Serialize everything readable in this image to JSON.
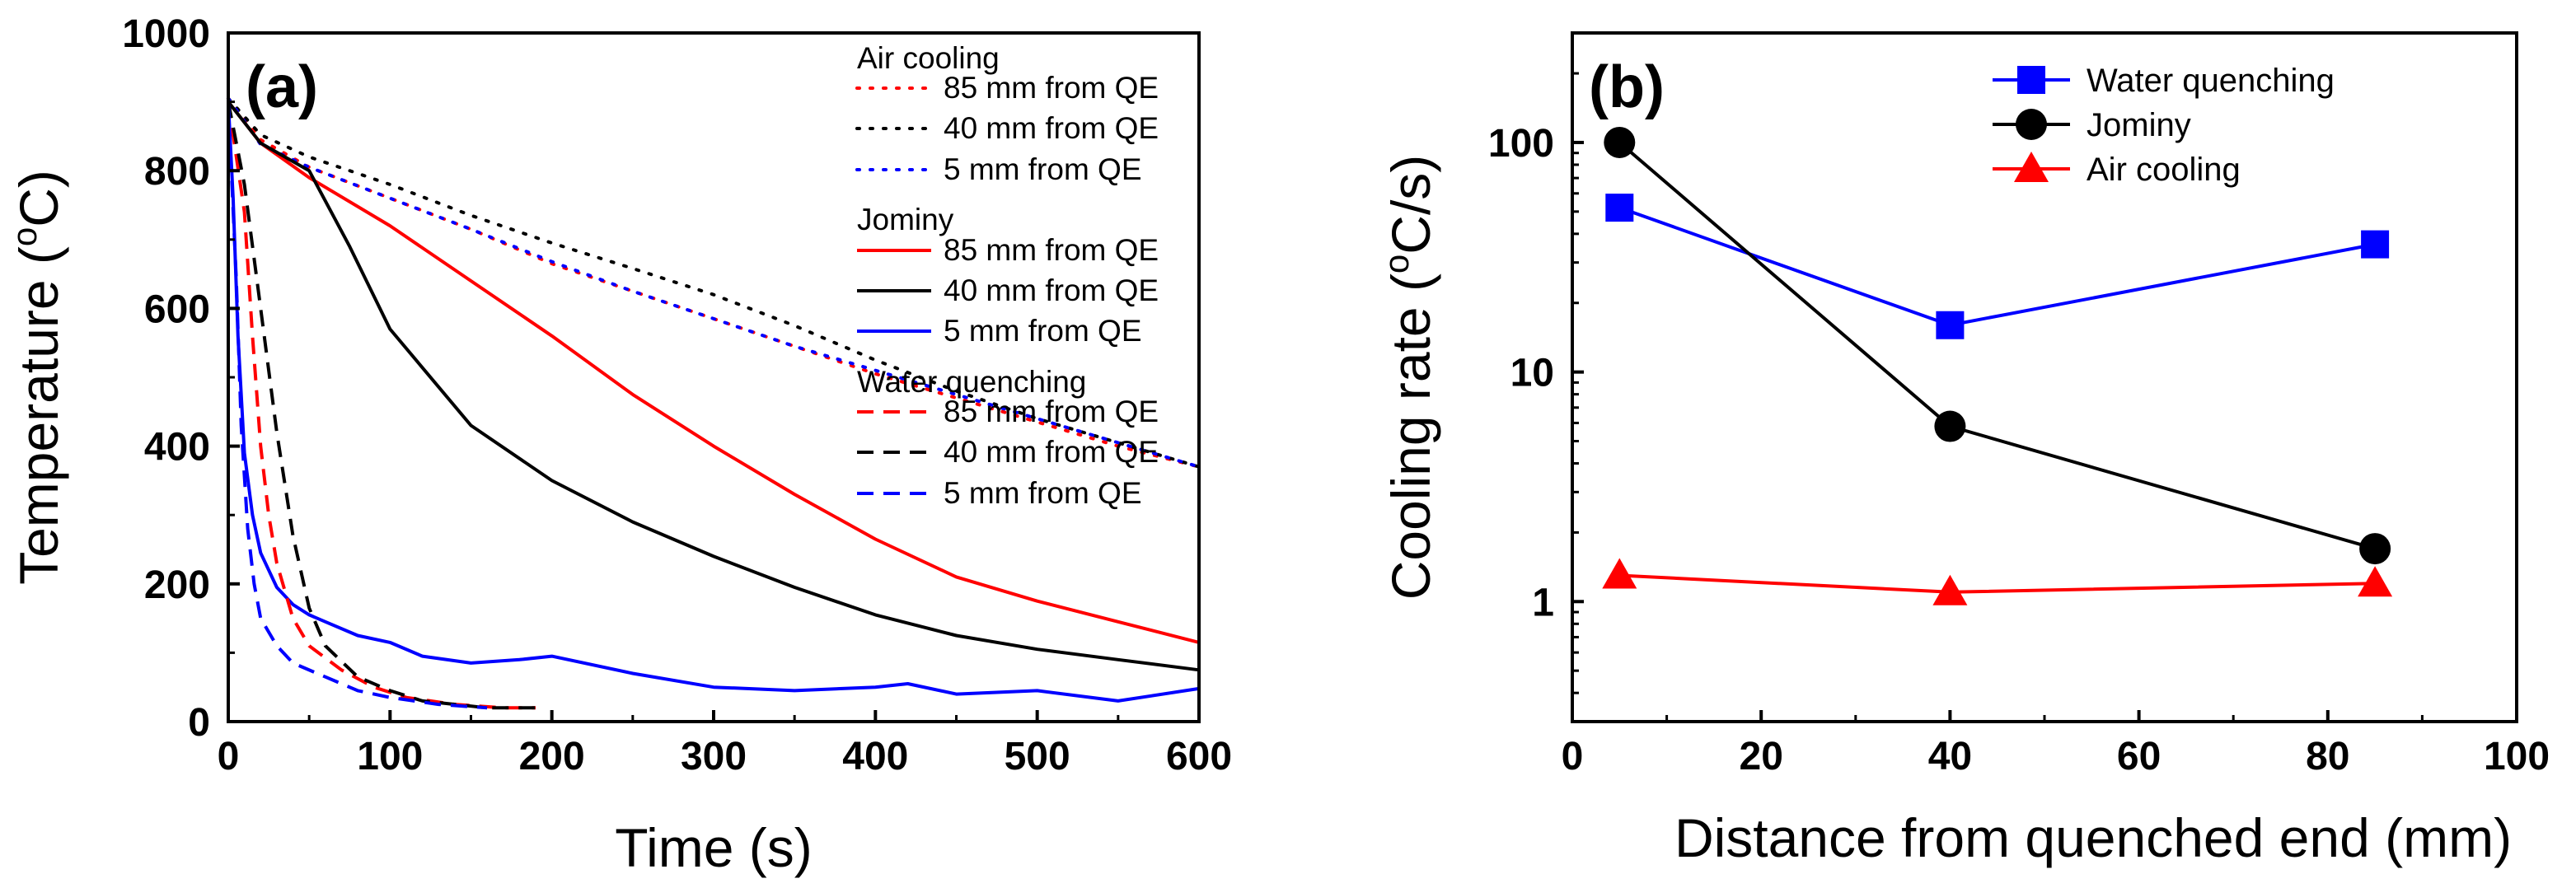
{
  "panels": {
    "a": {
      "label": "(a)",
      "ylabel_main": "Temperature (",
      "ylabel_sup": "o",
      "ylabel_tail": "C)",
      "legend_groups": [
        "Air cooling",
        "Jominy",
        "Water quenching"
      ],
      "legend_entries": [
        "85 mm from QE",
        "40 mm from QE",
        "5 mm from QE"
      ]
    },
    "b": {
      "label": "(b)",
      "ylabel_main": "Cooling rate (",
      "ylabel_sup": "o",
      "ylabel_tail": "C/s)"
    }
  },
  "colors": {
    "red": "#ff0000",
    "black": "#000000",
    "blue": "#0000ff"
  },
  "chart_data": [
    {
      "id": "a",
      "type": "line",
      "title": "(a)",
      "xlabel": "Time (s)",
      "ylabel": "Temperature (oC)",
      "xlim": [
        0,
        600
      ],
      "ylim": [
        0,
        1000
      ],
      "xticks": [
        0,
        100,
        200,
        300,
        400,
        500,
        600
      ],
      "yticks": [
        0,
        200,
        400,
        600,
        800,
        1000
      ],
      "legend_position": "top-right",
      "series": [
        {
          "group": "Air cooling",
          "name": "85 mm from QE",
          "color": "#ff0000",
          "dash": "dotted",
          "x": [
            0,
            20,
            50,
            100,
            150,
            200,
            250,
            300,
            350,
            400,
            450,
            500,
            550,
            600
          ],
          "y": [
            905,
            845,
            805,
            760,
            715,
            665,
            625,
            585,
            545,
            505,
            470,
            435,
            400,
            370
          ]
        },
        {
          "group": "Air cooling",
          "name": "40 mm from QE",
          "color": "#000000",
          "dash": "dotted",
          "x": [
            0,
            20,
            50,
            100,
            150,
            200,
            250,
            300,
            350,
            400,
            450,
            500,
            550,
            600
          ],
          "y": [
            905,
            852,
            820,
            780,
            735,
            695,
            658,
            620,
            575,
            525,
            480,
            440,
            405,
            370
          ]
        },
        {
          "group": "Air cooling",
          "name": "5 mm from QE",
          "color": "#0000ff",
          "dash": "dotted",
          "x": [
            0,
            20,
            50,
            100,
            150,
            200,
            250,
            300,
            350,
            400,
            450,
            500,
            550,
            600
          ],
          "y": [
            905,
            838,
            805,
            760,
            715,
            668,
            625,
            585,
            545,
            510,
            475,
            440,
            405,
            370
          ]
        },
        {
          "group": "Jominy",
          "name": "85 mm from QE",
          "color": "#ff0000",
          "dash": "solid",
          "x": [
            0,
            20,
            50,
            100,
            150,
            200,
            250,
            300,
            350,
            400,
            450,
            500,
            550,
            600
          ],
          "y": [
            900,
            840,
            790,
            720,
            640,
            560,
            475,
            400,
            330,
            265,
            210,
            175,
            145,
            115
          ]
        },
        {
          "group": "Jominy",
          "name": "40 mm from QE",
          "color": "#000000",
          "dash": "solid",
          "x": [
            0,
            20,
            50,
            75,
            100,
            150,
            200,
            250,
            300,
            350,
            400,
            450,
            500,
            550,
            600
          ],
          "y": [
            900,
            840,
            800,
            690,
            570,
            430,
            350,
            290,
            240,
            195,
            155,
            125,
            105,
            90,
            75
          ]
        },
        {
          "group": "Jominy",
          "name": "5 mm from QE",
          "color": "#0000ff",
          "dash": "solid",
          "x": [
            0,
            3,
            6,
            10,
            15,
            20,
            30,
            40,
            50,
            60,
            80,
            100,
            120,
            150,
            180,
            200,
            250,
            300,
            350,
            400,
            420,
            450,
            500,
            550,
            600
          ],
          "y": [
            900,
            760,
            560,
            390,
            300,
            245,
            195,
            170,
            155,
            145,
            125,
            115,
            95,
            85,
            90,
            95,
            70,
            50,
            45,
            50,
            55,
            40,
            45,
            30,
            48
          ]
        },
        {
          "group": "Water quenching",
          "name": "85 mm from QE",
          "color": "#ff0000",
          "dash": "dashed",
          "x": [
            0,
            10,
            15,
            20,
            25,
            30,
            40,
            50,
            70,
            90,
            110,
            140,
            170,
            190
          ],
          "y": [
            900,
            740,
            560,
            400,
            300,
            230,
            150,
            110,
            75,
            50,
            35,
            25,
            20,
            20
          ]
        },
        {
          "group": "Water quenching",
          "name": "40 mm from QE",
          "color": "#000000",
          "dash": "dashed",
          "x": [
            0,
            10,
            20,
            30,
            40,
            50,
            60,
            80,
            100,
            120,
            140,
            160,
            190
          ],
          "y": [
            900,
            780,
            600,
            420,
            270,
            165,
            110,
            65,
            45,
            30,
            25,
            20,
            20
          ]
        },
        {
          "group": "Water quenching",
          "name": "5 mm from QE",
          "color": "#0000ff",
          "dash": "dashed",
          "x": [
            0,
            5,
            8,
            12,
            16,
            20,
            30,
            40,
            60,
            80,
            100,
            130,
            160
          ],
          "y": [
            900,
            640,
            430,
            280,
            200,
            150,
            110,
            85,
            65,
            45,
            35,
            25,
            20
          ]
        }
      ]
    },
    {
      "id": "b",
      "type": "line",
      "title": "(b)",
      "xlabel": "Distance from quenched end (mm)",
      "ylabel": "Cooling rate (oC/s)",
      "xscale": "linear",
      "yscale": "log",
      "xlim": [
        0,
        100
      ],
      "ylim": [
        0.3,
        300
      ],
      "xticks": [
        0,
        20,
        40,
        60,
        80,
        100
      ],
      "yticks": [
        1,
        10,
        100
      ],
      "legend_position": "top-center",
      "series": [
        {
          "name": "Water quenching",
          "color": "#0000ff",
          "marker": "square",
          "x": [
            5,
            40,
            85
          ],
          "y": [
            52,
            16,
            36
          ]
        },
        {
          "name": "Jominy",
          "color": "#000000",
          "marker": "circle",
          "x": [
            5,
            40,
            85
          ],
          "y": [
            100,
            5.8,
            1.7
          ]
        },
        {
          "name": "Air cooling",
          "color": "#ff0000",
          "marker": "triangle",
          "x": [
            5,
            40,
            85
          ],
          "y": [
            1.3,
            1.1,
            1.2
          ]
        }
      ]
    }
  ]
}
